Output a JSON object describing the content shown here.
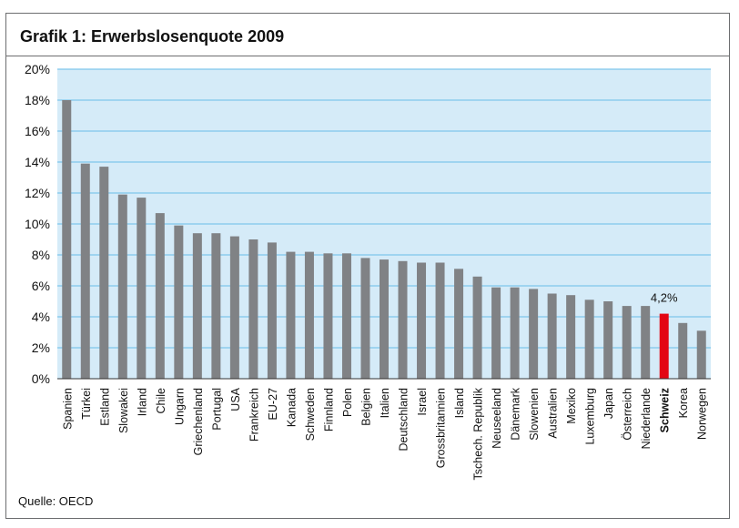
{
  "title": "Grafik 1: Erwerbslosenquote 2009",
  "source": "Quelle: OECD",
  "colors": {
    "plot_background": "#d5ebf8",
    "gridline": "#7fc6ec",
    "bar": "#808285",
    "highlight_bar": "#e30613",
    "axis": "#333333"
  },
  "chart_data": {
    "type": "bar",
    "title": "Grafik 1: Erwerbslosenquote 2009",
    "xlabel": "",
    "ylabel": "",
    "ylim": [
      0,
      20
    ],
    "y_ticks": [
      0,
      2,
      4,
      6,
      8,
      10,
      12,
      14,
      16,
      18,
      20
    ],
    "y_tick_labels": [
      "0%",
      "2%",
      "4%",
      "6%",
      "8%",
      "10%",
      "12%",
      "14%",
      "16%",
      "18%",
      "20%"
    ],
    "grid": true,
    "categories": [
      "Spanien",
      "Türkei",
      "Estland",
      "Slowakei",
      "Irland",
      "Chile",
      "Ungarn",
      "Griechenland",
      "Portugal",
      "USA",
      "Frankreich",
      "EU-27",
      "Kanada",
      "Schweden",
      "Finnland",
      "Polen",
      "Belgien",
      "Italien",
      "Deutschland",
      "Israel",
      "Grossbritannien",
      "Island",
      "Tschech. Republik",
      "Neuseeland",
      "Dänemark",
      "Slowenien",
      "Australien",
      "Mexiko",
      "Luxemburg",
      "Japan",
      "Österreich",
      "Niederlande",
      "Schweiz",
      "Korea",
      "Norwegen"
    ],
    "values": [
      18.0,
      13.9,
      13.7,
      11.9,
      11.7,
      10.7,
      9.9,
      9.4,
      9.4,
      9.2,
      9.0,
      8.8,
      8.2,
      8.2,
      8.1,
      8.1,
      7.8,
      7.7,
      7.6,
      7.5,
      7.5,
      7.1,
      6.6,
      5.9,
      5.9,
      5.8,
      5.5,
      5.4,
      5.1,
      5.0,
      4.7,
      4.7,
      4.2,
      3.6,
      3.1
    ],
    "highlight": "Schweiz",
    "annotations": [
      {
        "category": "Schweiz",
        "text": "4,2%"
      }
    ]
  }
}
